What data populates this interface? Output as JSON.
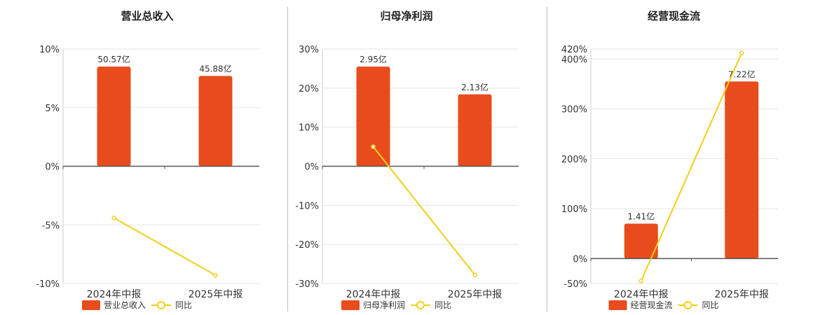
{
  "colors": {
    "bar": "#E84C1C",
    "line": "#F2CF1A",
    "axis": "#555555",
    "grid": "#e5e5e5"
  },
  "chart_data": [
    {
      "type": "bar",
      "title": "营业总收入",
      "categories": [
        "2024年中报",
        "2025年中报"
      ],
      "series": [
        {
          "name": "营业总收入",
          "type": "bar",
          "values": [
            8.5,
            7.7
          ],
          "labels": [
            "50.57亿",
            "45.88亿"
          ]
        },
        {
          "name": "同比",
          "type": "line",
          "values": [
            -4.4,
            -9.3
          ]
        }
      ],
      "ylim": [
        -10,
        10
      ],
      "yticks": [
        10,
        5,
        0,
        -5,
        -10
      ],
      "ytick_labels": [
        "10%",
        "5%",
        "0%",
        "-5%",
        "-10%"
      ],
      "legend": "bottom",
      "grid": true
    },
    {
      "type": "bar",
      "title": "归母净利润",
      "categories": [
        "2024年中报",
        "2025年中报"
      ],
      "series": [
        {
          "name": "归母净利润",
          "type": "bar",
          "values": [
            25.5,
            18.4
          ],
          "labels": [
            "2.95亿",
            "2.13亿"
          ]
        },
        {
          "name": "同比",
          "type": "line",
          "values": [
            5.0,
            -27.8
          ]
        }
      ],
      "ylim": [
        -30,
        30
      ],
      "yticks": [
        30,
        20,
        10,
        0,
        -10,
        -20,
        -30
      ],
      "ytick_labels": [
        "30%",
        "20%",
        "10%",
        "0%",
        "-10%",
        "-20%",
        "-30%"
      ],
      "legend": "bottom",
      "grid": true
    },
    {
      "type": "bar",
      "title": "经营现金流",
      "categories": [
        "2024年中报",
        "2025年中报"
      ],
      "series": [
        {
          "name": "经营现金流",
          "type": "bar",
          "values": [
            70,
            355
          ],
          "labels": [
            "1.41亿",
            "7.22亿"
          ]
        },
        {
          "name": "同比",
          "type": "line",
          "values": [
            -45,
            412
          ]
        }
      ],
      "ylim": [
        -50,
        420
      ],
      "yticks": [
        420,
        400,
        300,
        200,
        100,
        0,
        -50
      ],
      "ytick_labels": [
        "420%",
        "400%",
        "300%",
        "200%",
        "100%",
        "0%",
        "-50%"
      ],
      "legend": "bottom",
      "grid": true
    }
  ]
}
